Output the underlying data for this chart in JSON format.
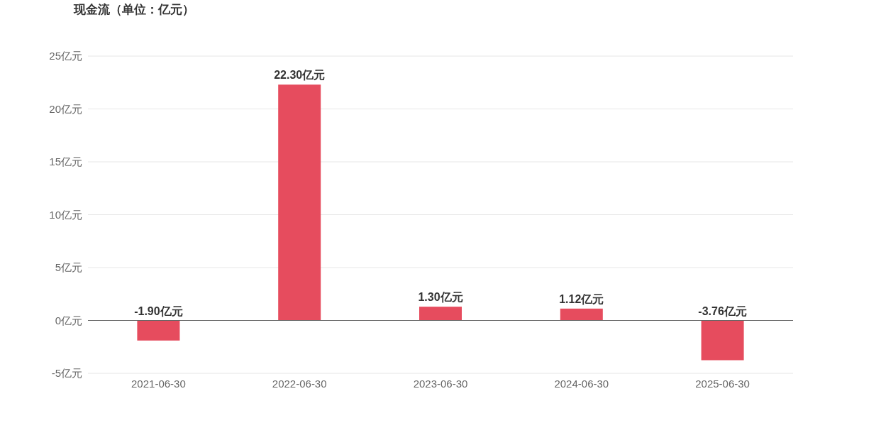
{
  "chart_data": {
    "type": "bar",
    "title": "现金流（单位：亿元）",
    "categories": [
      "2021-06-30",
      "2022-06-30",
      "2023-06-30",
      "2024-06-30",
      "2025-06-30"
    ],
    "values": [
      -1.9,
      22.3,
      1.3,
      1.12,
      -3.76
    ],
    "value_labels": [
      "-1.90亿元",
      "22.30亿元",
      "1.30亿元",
      "1.12亿元",
      "-3.76亿元"
    ],
    "color": "#e64c5e",
    "ylim": [
      -5,
      25
    ],
    "yticks": [
      {
        "value": -5,
        "label": "-5亿元"
      },
      {
        "value": 0,
        "label": "0亿元"
      },
      {
        "value": 5,
        "label": "5亿元"
      },
      {
        "value": 10,
        "label": "10亿元"
      },
      {
        "value": 15,
        "label": "15亿元"
      },
      {
        "value": 20,
        "label": "20亿元"
      },
      {
        "value": 25,
        "label": "25亿元"
      }
    ],
    "grid": "y"
  }
}
